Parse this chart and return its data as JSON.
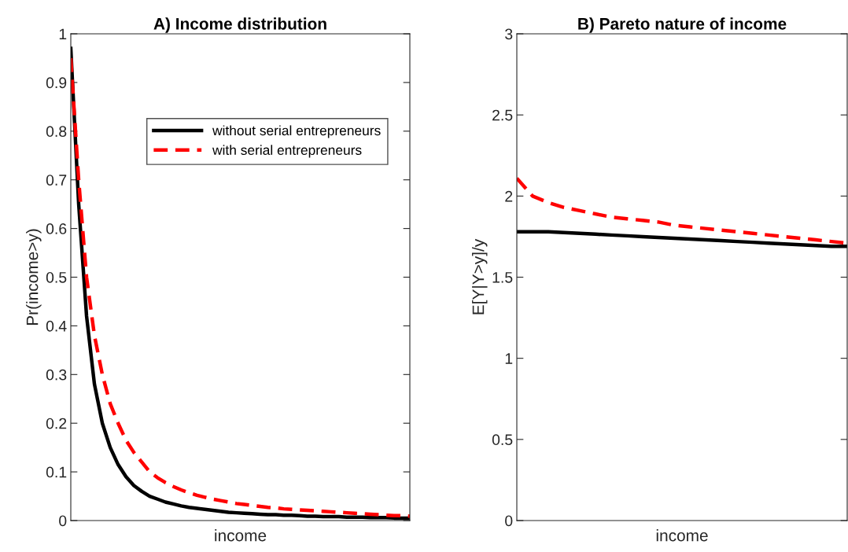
{
  "chart_data": [
    {
      "type": "line",
      "title": "A) Income distribution",
      "xlabel": "income",
      "ylabel": "Pr(income>y)",
      "tick_labels": "y",
      "grid": false,
      "legend": "top right",
      "categories": [
        null,
        null,
        null,
        null,
        null,
        null,
        null,
        null,
        null,
        null,
        null,
        null,
        null,
        null,
        null,
        null,
        null,
        null,
        null,
        null,
        null,
        null,
        null,
        null,
        null,
        null,
        null,
        null,
        null,
        null,
        null,
        null,
        null,
        null,
        null,
        null,
        null,
        null,
        null,
        null,
        null,
        null,
        null,
        null
      ],
      "ylim": [
        0,
        1
      ],
      "yticks": [
        0,
        0.1,
        0.2,
        0.3,
        0.4,
        0.5,
        0.6,
        0.7,
        0.8,
        0.9,
        1
      ],
      "series": [
        {
          "name": "without serial entrepreneurs",
          "color": "#000000",
          "line_style": "solid",
          "values": [
            0.97,
            0.65,
            0.42,
            0.28,
            0.2,
            0.15,
            0.115,
            0.09,
            0.072,
            0.06,
            0.05,
            0.044,
            0.038,
            0.034,
            0.03,
            0.027,
            0.025,
            0.023,
            0.021,
            0.019,
            0.017,
            0.016,
            0.015,
            0.014,
            0.013,
            0.012,
            0.012,
            0.011,
            0.011,
            0.01,
            0.009,
            0.009,
            0.008,
            0.008,
            0.008,
            0.007,
            0.007,
            0.007,
            0.006,
            0.006,
            0.006,
            0.005,
            0.005,
            0.005
          ]
        },
        {
          "name": "with serial entrepreneurs",
          "color": "#ff0000",
          "line_style": "dashed",
          "values": [
            0.95,
            0.7,
            0.5,
            0.38,
            0.3,
            0.24,
            0.2,
            0.165,
            0.14,
            0.12,
            0.1,
            0.088,
            0.078,
            0.07,
            0.063,
            0.057,
            0.052,
            0.048,
            0.044,
            0.041,
            0.038,
            0.035,
            0.033,
            0.031,
            0.029,
            0.027,
            0.026,
            0.024,
            0.023,
            0.022,
            0.021,
            0.02,
            0.019,
            0.018,
            0.017,
            0.016,
            0.015,
            0.014,
            0.013,
            0.012,
            0.011,
            0.01,
            0.01,
            0.009
          ]
        }
      ]
    },
    {
      "type": "line",
      "title": "B) Pareto nature of income",
      "xlabel": "income",
      "ylabel": "E[Y|Y>y]/y",
      "tick_labels": "y",
      "grid": false,
      "categories": [
        null,
        null,
        null,
        null,
        null,
        null,
        null,
        null,
        null,
        null,
        null,
        null,
        null,
        null,
        null,
        null,
        null,
        null,
        null,
        null,
        null,
        null
      ],
      "ylim": [
        0,
        3
      ],
      "yticks": [
        0,
        0.5,
        1,
        1.5,
        2,
        2.5,
        3
      ],
      "series": [
        {
          "color": "#000000",
          "line_style": "solid",
          "values": [
            1.78,
            1.78,
            1.78,
            1.775,
            1.77,
            1.765,
            1.76,
            1.755,
            1.75,
            1.745,
            1.74,
            1.735,
            1.73,
            1.725,
            1.72,
            1.715,
            1.71,
            1.705,
            1.7,
            1.695,
            1.69,
            1.69
          ]
        },
        {
          "color": "#ff0000",
          "line_style": "dashed",
          "values": [
            2.11,
            2.0,
            1.96,
            1.93,
            1.91,
            1.89,
            1.87,
            1.86,
            1.85,
            1.84,
            1.82,
            1.81,
            1.8,
            1.79,
            1.78,
            1.77,
            1.76,
            1.75,
            1.74,
            1.73,
            1.72,
            1.71
          ]
        }
      ]
    }
  ]
}
